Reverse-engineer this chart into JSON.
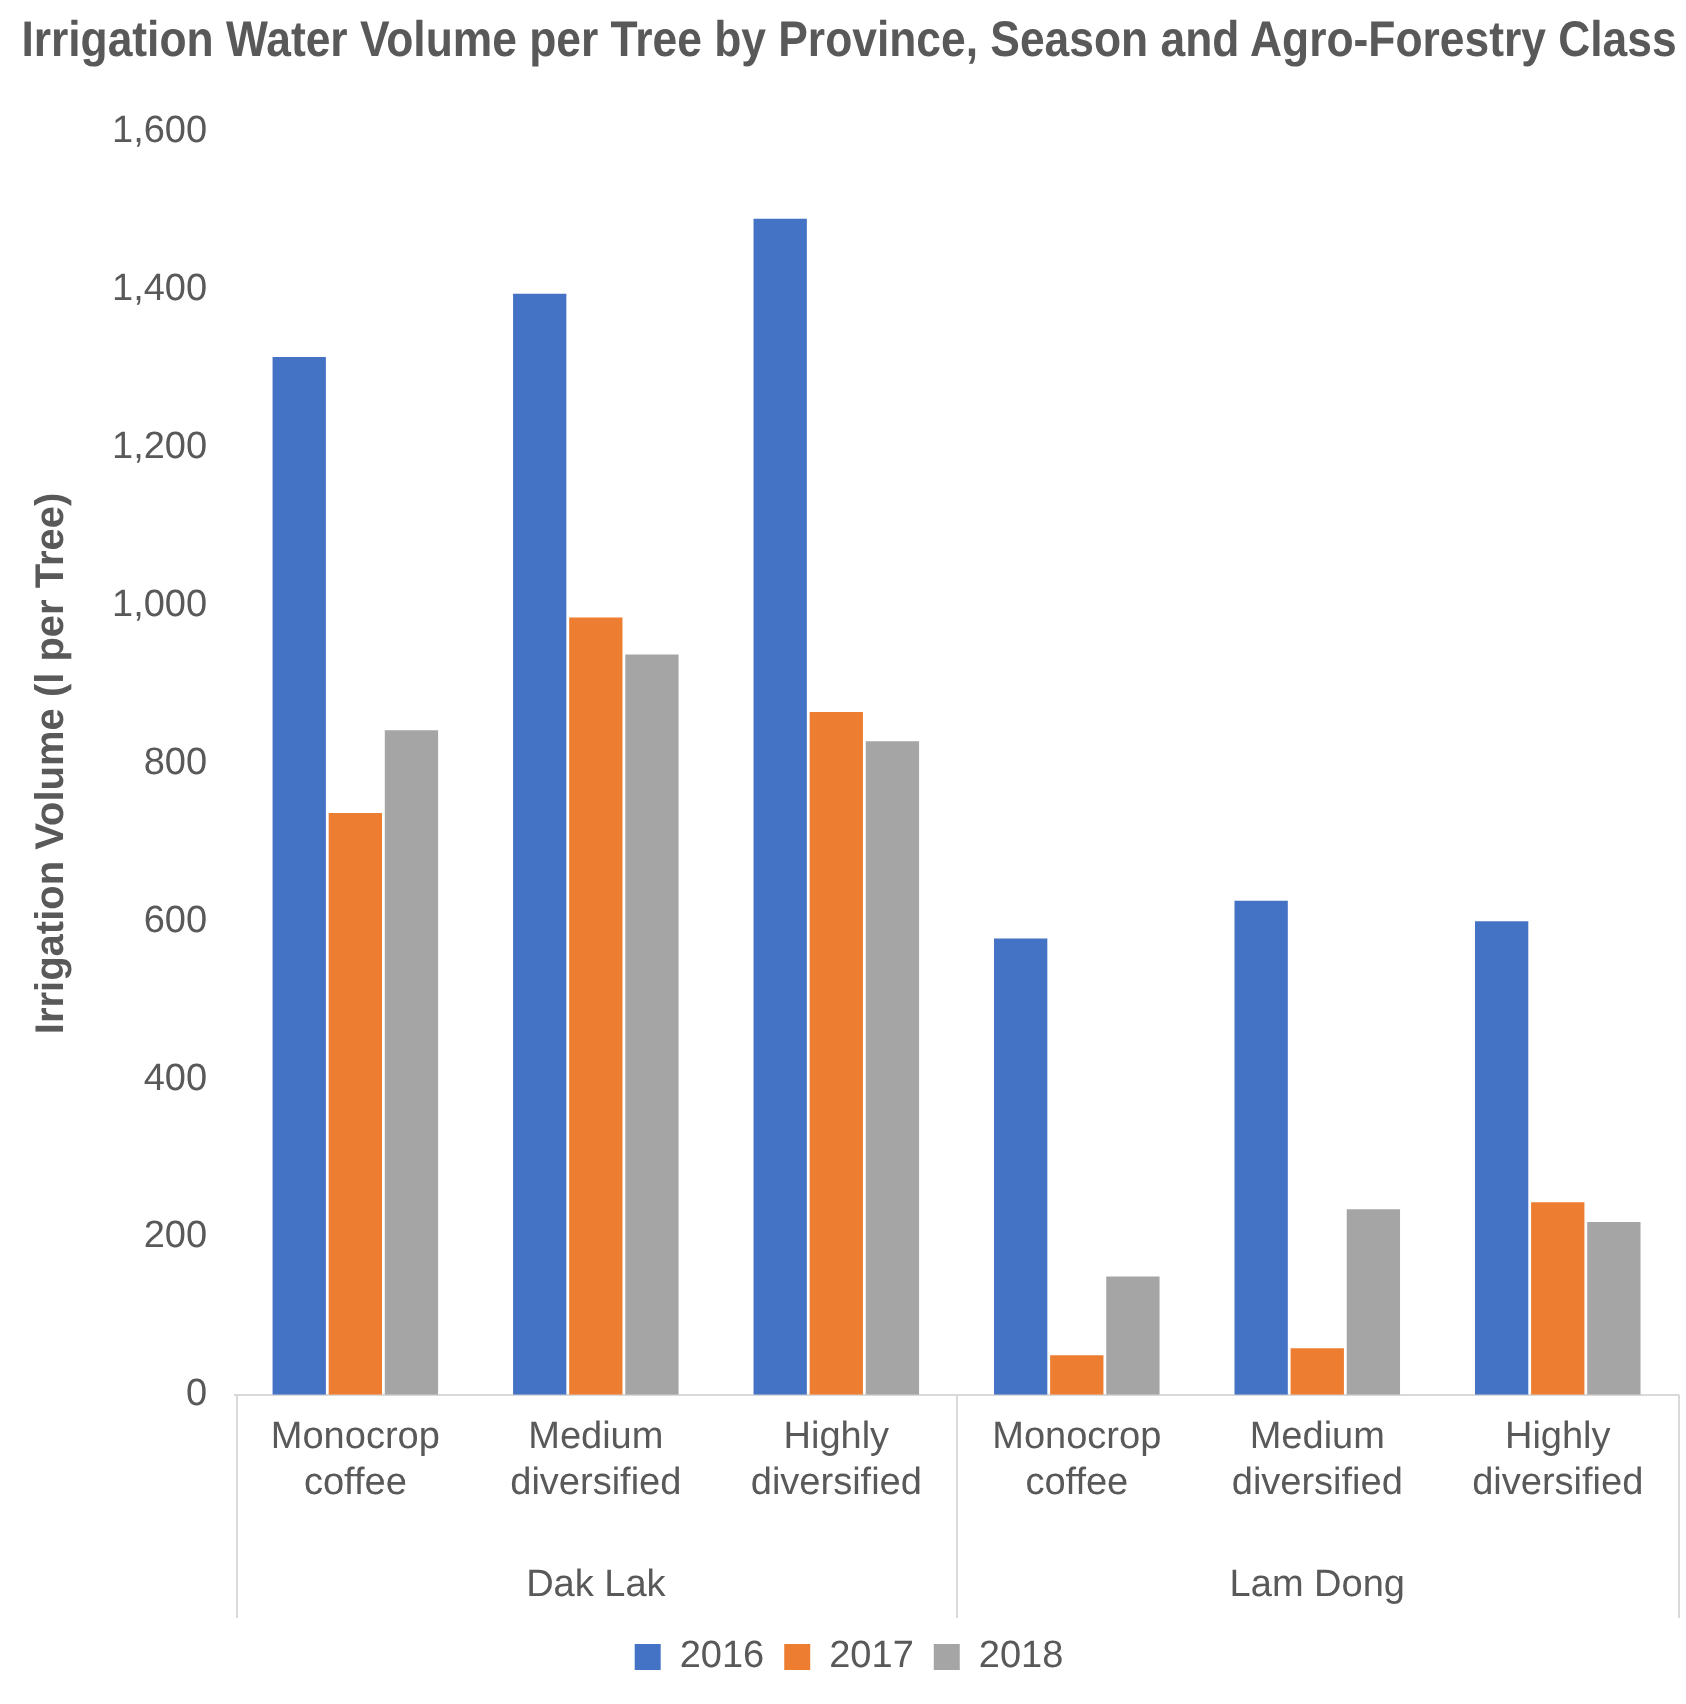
{
  "chart_data": {
    "type": "bar",
    "title": "Irrigation Water Volume per Tree by Province, Season and Agro-Forestry Class",
    "ylabel": "Irrigation Volume (l per Tree)",
    "categories": [
      "Monocrop coffee",
      "Medium diversified",
      "Highly diversified",
      "Monocrop coffee",
      "Medium diversified",
      "Highly diversified"
    ],
    "annotations": [
      "Dak Lak",
      "Lam Dong"
    ],
    "series": [
      {
        "name": "2016",
        "color": "#4472c4",
        "values": [
          1315,
          1395,
          1490,
          578,
          626,
          600
        ]
      },
      {
        "name": "2017",
        "color": "#ed7d31",
        "values": [
          737,
          985,
          865,
          50,
          59,
          244
        ]
      },
      {
        "name": "2018",
        "color": "#a5a5a5",
        "values": [
          842,
          938,
          828,
          150,
          235,
          219
        ]
      }
    ],
    "ylim": [
      0,
      1600
    ],
    "yticks": [
      {
        "value": 0,
        "label": "0"
      },
      {
        "value": 200,
        "label": "200"
      },
      {
        "value": 400,
        "label": "400"
      },
      {
        "value": 600,
        "label": "600"
      },
      {
        "value": 800,
        "label": "800"
      },
      {
        "value": 1000,
        "label": "1,000"
      },
      {
        "value": 1200,
        "label": "1,200"
      },
      {
        "value": 1400,
        "label": "1,400"
      },
      {
        "value": 1600,
        "label": "1,600"
      }
    ],
    "grid": false,
    "legend": "bottom"
  }
}
